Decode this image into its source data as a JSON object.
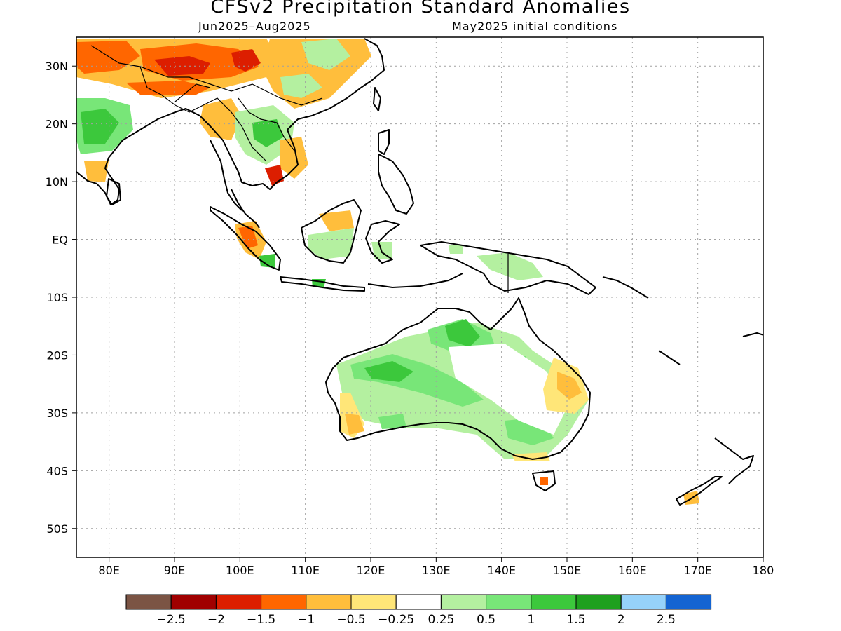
{
  "title": "CFSv2 Precipitation Standard Anomalies",
  "period": "Jun2025–Aug2025",
  "init": "May2025 initial conditions",
  "map": {
    "lon_range": [
      75,
      180
    ],
    "lat_range": [
      -55,
      35
    ],
    "x_ticks": [
      {
        "lon": 80,
        "label": "80E"
      },
      {
        "lon": 90,
        "label": "90E"
      },
      {
        "lon": 100,
        "label": "100E"
      },
      {
        "lon": 110,
        "label": "110E"
      },
      {
        "lon": 120,
        "label": "120E"
      },
      {
        "lon": 130,
        "label": "130E"
      },
      {
        "lon": 140,
        "label": "140E"
      },
      {
        "lon": 150,
        "label": "150E"
      },
      {
        "lon": 160,
        "label": "160E"
      },
      {
        "lon": 170,
        "label": "170E"
      },
      {
        "lon": 180,
        "label": "180"
      }
    ],
    "y_ticks": [
      {
        "lat": 30,
        "label": "30N"
      },
      {
        "lat": 20,
        "label": "20N"
      },
      {
        "lat": 10,
        "label": "10N"
      },
      {
        "lat": 0,
        "label": "EQ"
      },
      {
        "lat": -10,
        "label": "10S"
      },
      {
        "lat": -20,
        "label": "20S"
      },
      {
        "lat": -30,
        "label": "30S"
      },
      {
        "lat": -40,
        "label": "40S"
      },
      {
        "lat": -50,
        "label": "50S"
      }
    ],
    "grid": "dotted",
    "colorbar": {
      "colors": [
        "#7b5444",
        "#a00000",
        "#dc1e00",
        "#ff6600",
        "#ffbe3c",
        "#ffe678",
        "#ffffff",
        "#b4f0a0",
        "#78e678",
        "#3cc83c",
        "#1ea01e",
        "#96d2fa",
        "#1464d2"
      ],
      "labels": [
        "−2.5",
        "−2",
        "−1.5",
        "−1",
        "−0.5",
        "−0.25",
        "0.25",
        "0.5",
        "1",
        "1.5",
        "2",
        "2.5"
      ]
    }
  }
}
